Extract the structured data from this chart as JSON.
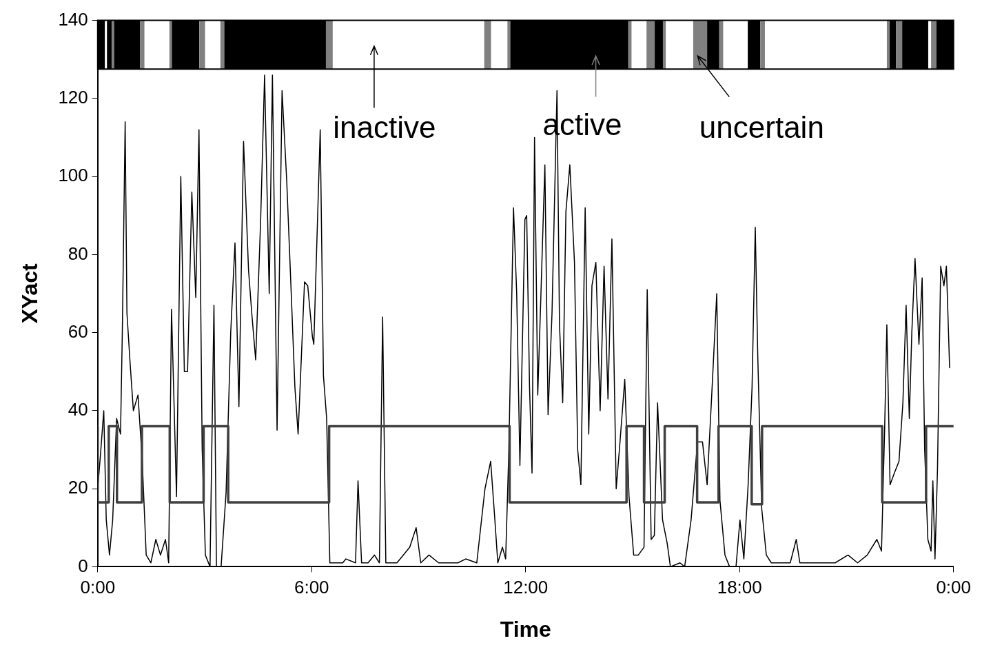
{
  "chart_data": {
    "type": "line",
    "xlabel": "Time",
    "ylabel": "XYact",
    "xlim": [
      0,
      24
    ],
    "xticks": [
      {
        "value": 0,
        "label": "0:00"
      },
      {
        "value": 6,
        "label": "6:00"
      },
      {
        "value": 12,
        "label": "12:00"
      },
      {
        "value": 18,
        "label": "18:00"
      },
      {
        "value": 24,
        "label": "0:00"
      }
    ],
    "ylim": [
      0,
      140
    ],
    "yticks": [
      0,
      20,
      40,
      60,
      80,
      100,
      120,
      140
    ],
    "series": [
      {
        "color": "#000000",
        "x": [
          0,
          0.08,
          0.17,
          0.24,
          0.33,
          0.42,
          0.53,
          0.64,
          0.69,
          0.77,
          0.82,
          0.91,
          1.0,
          1.13,
          1.25,
          1.36,
          1.49,
          1.63,
          1.76,
          1.9,
          1.99,
          2.07,
          2.21,
          2.33,
          2.43,
          2.52,
          2.64,
          2.75,
          2.84,
          2.93,
          3.02,
          3.15,
          3.26,
          3.33,
          3.46,
          3.6,
          3.73,
          3.85,
          3.96,
          4.09,
          4.23,
          4.32,
          4.43,
          4.57,
          4.68,
          4.81,
          4.9,
          5.03,
          5.17,
          5.3,
          5.41,
          5.53,
          5.62,
          5.8,
          5.89,
          6.02,
          6.06,
          6.24,
          6.33,
          6.42,
          6.51,
          6.87,
          6.96,
          7.23,
          7.3,
          7.4,
          7.58,
          7.76,
          7.9,
          7.99,
          8.08,
          8.39,
          8.57,
          8.75,
          8.93,
          9.06,
          9.29,
          9.56,
          9.83,
          10.1,
          10.32,
          10.63,
          10.86,
          11.02,
          11.13,
          11.22,
          11.35,
          11.44,
          11.53,
          11.66,
          11.75,
          11.84,
          11.98,
          12.03,
          12.11,
          12.18,
          12.25,
          12.34,
          12.43,
          12.54,
          12.63,
          12.74,
          12.88,
          12.95,
          13.04,
          13.13,
          13.24,
          13.37,
          13.46,
          13.55,
          13.67,
          13.77,
          13.86,
          13.97,
          14.09,
          14.2,
          14.31,
          14.42,
          14.54,
          14.63,
          14.78,
          14.9,
          15.03,
          15.16,
          15.32,
          15.41,
          15.52,
          15.61,
          15.7,
          15.84,
          15.97,
          16.06,
          16.33,
          16.46,
          16.64,
          16.82,
          16.96,
          17.09,
          17.23,
          17.36,
          17.45,
          17.59,
          17.72,
          17.9,
          18.01,
          18.12,
          18.24,
          18.35,
          18.44,
          18.51,
          18.62,
          18.75,
          18.89,
          19.16,
          19.42,
          19.59,
          19.69,
          19.96,
          20.32,
          20.68,
          21.04,
          21.31,
          21.58,
          21.85,
          21.98,
          22.07,
          22.13,
          22.22,
          22.34,
          22.47,
          22.58,
          22.67,
          22.76,
          22.83,
          22.92,
          23.03,
          23.12,
          23.19,
          23.28,
          23.37,
          23.42,
          23.48,
          23.55,
          23.64,
          23.73,
          23.8,
          23.89
        ],
        "values": [
          20,
          29,
          40,
          12,
          3,
          12,
          38,
          34,
          60,
          114,
          65,
          52,
          40,
          44,
          27,
          3,
          1,
          7,
          3,
          7,
          1,
          66,
          18,
          100,
          50,
          50,
          96,
          69,
          112,
          30,
          3,
          0,
          67,
          0,
          0,
          19,
          60,
          83,
          41,
          109,
          76,
          65,
          53,
          89,
          126,
          70,
          126,
          35,
          122,
          99,
          74,
          46,
          34,
          73,
          72,
          59,
          57,
          112,
          49,
          38,
          1,
          1,
          2,
          1,
          22,
          1,
          1,
          3,
          1,
          64,
          1,
          1,
          3,
          5,
          10,
          1,
          3,
          1,
          1,
          1,
          2,
          1,
          20,
          27,
          13,
          1,
          5,
          2,
          30,
          92,
          70,
          26,
          89,
          90,
          46,
          24,
          110,
          44,
          70,
          103,
          39,
          65,
          122,
          62,
          42,
          91,
          103,
          78,
          30,
          21,
          92,
          34,
          72,
          78,
          40,
          77,
          43,
          84,
          20,
          30,
          48,
          18,
          3,
          3,
          5,
          71,
          7,
          8,
          42,
          12,
          6,
          0,
          1,
          0,
          12,
          32,
          32,
          21,
          46,
          70,
          17,
          3,
          0,
          0,
          12,
          2,
          21,
          46,
          87,
          54,
          15,
          3,
          1,
          1,
          1,
          7,
          1,
          1,
          1,
          1,
          3,
          1,
          3,
          7,
          4,
          36,
          62,
          21,
          24,
          27,
          42,
          67,
          38,
          60,
          79,
          57,
          74,
          30,
          7,
          4,
          22,
          2,
          25,
          77,
          72,
          77,
          51
        ]
      },
      {
        "type": "step",
        "color": "#404040",
        "x": [
          0,
          0.31,
          0.54,
          1.24,
          2.02,
          2.97,
          3.66,
          6.49,
          11.55,
          14.83,
          15.32,
          15.9,
          16.81,
          17.41,
          18.34,
          18.63,
          22.0,
          23.23,
          23.56,
          24
        ],
        "values": [
          36,
          16.5,
          36,
          16.5,
          36,
          16.5,
          36,
          16.5,
          36,
          16.5,
          36,
          16.5,
          36,
          16.5,
          36,
          16,
          36,
          16.5,
          36,
          36
        ]
      }
    ],
    "bands": [
      {
        "axis": "x",
        "from": 0,
        "to": 0.2,
        "color": "#000000"
      },
      {
        "axis": "x",
        "from": 0.26,
        "to": 0.39,
        "color": "#000000"
      },
      {
        "axis": "x",
        "from": 0.39,
        "to": 0.46,
        "color": "#808080"
      },
      {
        "axis": "x",
        "from": 0.46,
        "to": 1.19,
        "color": "#000000"
      },
      {
        "axis": "x",
        "from": 1.19,
        "to": 1.31,
        "color": "#808080"
      },
      {
        "axis": "x",
        "from": 2.01,
        "to": 2.08,
        "color": "#808080"
      },
      {
        "axis": "x",
        "from": 2.08,
        "to": 2.85,
        "color": "#000000"
      },
      {
        "axis": "x",
        "from": 2.85,
        "to": 3.01,
        "color": "#808080"
      },
      {
        "axis": "x",
        "from": 3.44,
        "to": 3.55,
        "color": "#808080"
      },
      {
        "axis": "x",
        "from": 3.55,
        "to": 6.4,
        "color": "#000000"
      },
      {
        "axis": "x",
        "from": 6.4,
        "to": 6.59,
        "color": "#808080"
      },
      {
        "axis": "x",
        "from": 10.84,
        "to": 11.03,
        "color": "#808080"
      },
      {
        "axis": "x",
        "from": 11.49,
        "to": 11.57,
        "color": "#808080"
      },
      {
        "axis": "x",
        "from": 11.57,
        "to": 14.88,
        "color": "#000000"
      },
      {
        "axis": "x",
        "from": 14.88,
        "to": 14.97,
        "color": "#808080"
      },
      {
        "axis": "x",
        "from": 15.39,
        "to": 15.62,
        "color": "#808080"
      },
      {
        "axis": "x",
        "from": 15.62,
        "to": 15.85,
        "color": "#000000"
      },
      {
        "axis": "x",
        "from": 15.85,
        "to": 15.93,
        "color": "#808080"
      },
      {
        "axis": "x",
        "from": 16.7,
        "to": 17.09,
        "color": "#808080"
      },
      {
        "axis": "x",
        "from": 17.09,
        "to": 17.43,
        "color": "#000000"
      },
      {
        "axis": "x",
        "from": 17.43,
        "to": 17.54,
        "color": "#808080"
      },
      {
        "axis": "x",
        "from": 18.23,
        "to": 18.58,
        "color": "#000000"
      },
      {
        "axis": "x",
        "from": 18.58,
        "to": 18.71,
        "color": "#808080"
      },
      {
        "axis": "x",
        "from": 22.13,
        "to": 22.21,
        "color": "#808080"
      },
      {
        "axis": "x",
        "from": 22.21,
        "to": 22.39,
        "color": "#000000"
      },
      {
        "axis": "x",
        "from": 22.39,
        "to": 22.56,
        "color": "#808080"
      },
      {
        "axis": "x",
        "from": 22.56,
        "to": 23.29,
        "color": "#000000"
      },
      {
        "axis": "x",
        "from": 23.37,
        "to": 23.52,
        "color": "#808080"
      },
      {
        "axis": "x",
        "from": 23.52,
        "to": 24,
        "color": "#000000"
      }
    ],
    "annotations": [
      "inactive",
      "active",
      "uncertain"
    ]
  }
}
